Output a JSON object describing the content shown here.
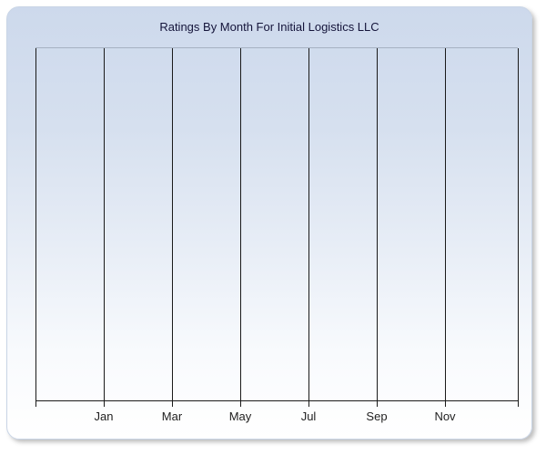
{
  "page": {
    "background": "#ffffff"
  },
  "card": {
    "background_top": "#cdd9ec",
    "background_bottom": "#ffffff",
    "border_color": "#c9d5e6"
  },
  "chart_data": {
    "type": "line",
    "title": "Ratings By Month For Initial Logistics LLC",
    "xlabel": "",
    "ylabel": "",
    "x_tick_labels": [
      "Jan",
      "Mar",
      "May",
      "Jul",
      "Sep",
      "Nov"
    ],
    "y_tick_labels": [],
    "series": [],
    "grid": "vertical-only",
    "legend": "none",
    "gridline_color": "#1a1a1a",
    "axis_color": "#1a1a1a",
    "plot_top_border_color": "#a6b1c2",
    "title_color": "#14143a",
    "tick_label_color": "#1f1f1f",
    "note": "Plot area is empty; no data series is drawn for any month"
  }
}
